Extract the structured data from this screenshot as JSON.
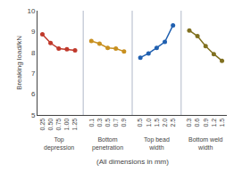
{
  "chart_data": {
    "type": "line",
    "ylabel": "Breaking load/kN",
    "xlabel": "(All dimensions in mm)",
    "categories": [
      "0.25",
      "0.50",
      "0.75",
      "1.00",
      "1.25",
      null,
      "0.1",
      "0.3",
      "0.5",
      "0.7",
      "0.9",
      null,
      "0.5",
      "1.0",
      "1.5",
      "2.0",
      "2.5",
      null,
      "0.3",
      "0.6",
      "0.9",
      "1.2",
      "1.5"
    ],
    "series": [
      {
        "name": "Top\ndepression",
        "color": "#c0392b",
        "marker": "circle",
        "values": [
          8.87,
          8.45,
          8.18,
          8.15,
          8.1,
          null,
          null,
          null,
          null,
          null,
          null,
          null,
          null,
          null,
          null,
          null,
          null,
          null,
          null,
          null,
          null,
          null,
          null
        ]
      },
      {
        "name": "Bottom\npenetration",
        "color": "#c89020",
        "marker": "circle",
        "values": [
          null,
          null,
          null,
          null,
          null,
          null,
          8.55,
          8.42,
          8.22,
          8.18,
          8.05,
          null,
          null,
          null,
          null,
          null,
          null,
          null,
          null,
          null,
          null,
          null,
          null
        ]
      },
      {
        "name": "Top bead\nwidth",
        "color": "#2060b0",
        "marker": "circle",
        "values": [
          null,
          null,
          null,
          null,
          null,
          null,
          null,
          null,
          null,
          null,
          null,
          null,
          7.75,
          7.95,
          8.22,
          8.5,
          9.3,
          null,
          null,
          null,
          null,
          null,
          null
        ]
      },
      {
        "name": "Bottom weld\nwidth",
        "color": "#807020",
        "marker": "circle",
        "values": [
          null,
          null,
          null,
          null,
          null,
          null,
          null,
          null,
          null,
          null,
          null,
          null,
          null,
          null,
          null,
          null,
          null,
          null,
          9.05,
          8.78,
          8.3,
          7.92,
          7.6
        ]
      }
    ],
    "ylim": [
      5,
      10
    ],
    "yticks": [
      5,
      6,
      7,
      8,
      9,
      10
    ],
    "grid": false
  }
}
